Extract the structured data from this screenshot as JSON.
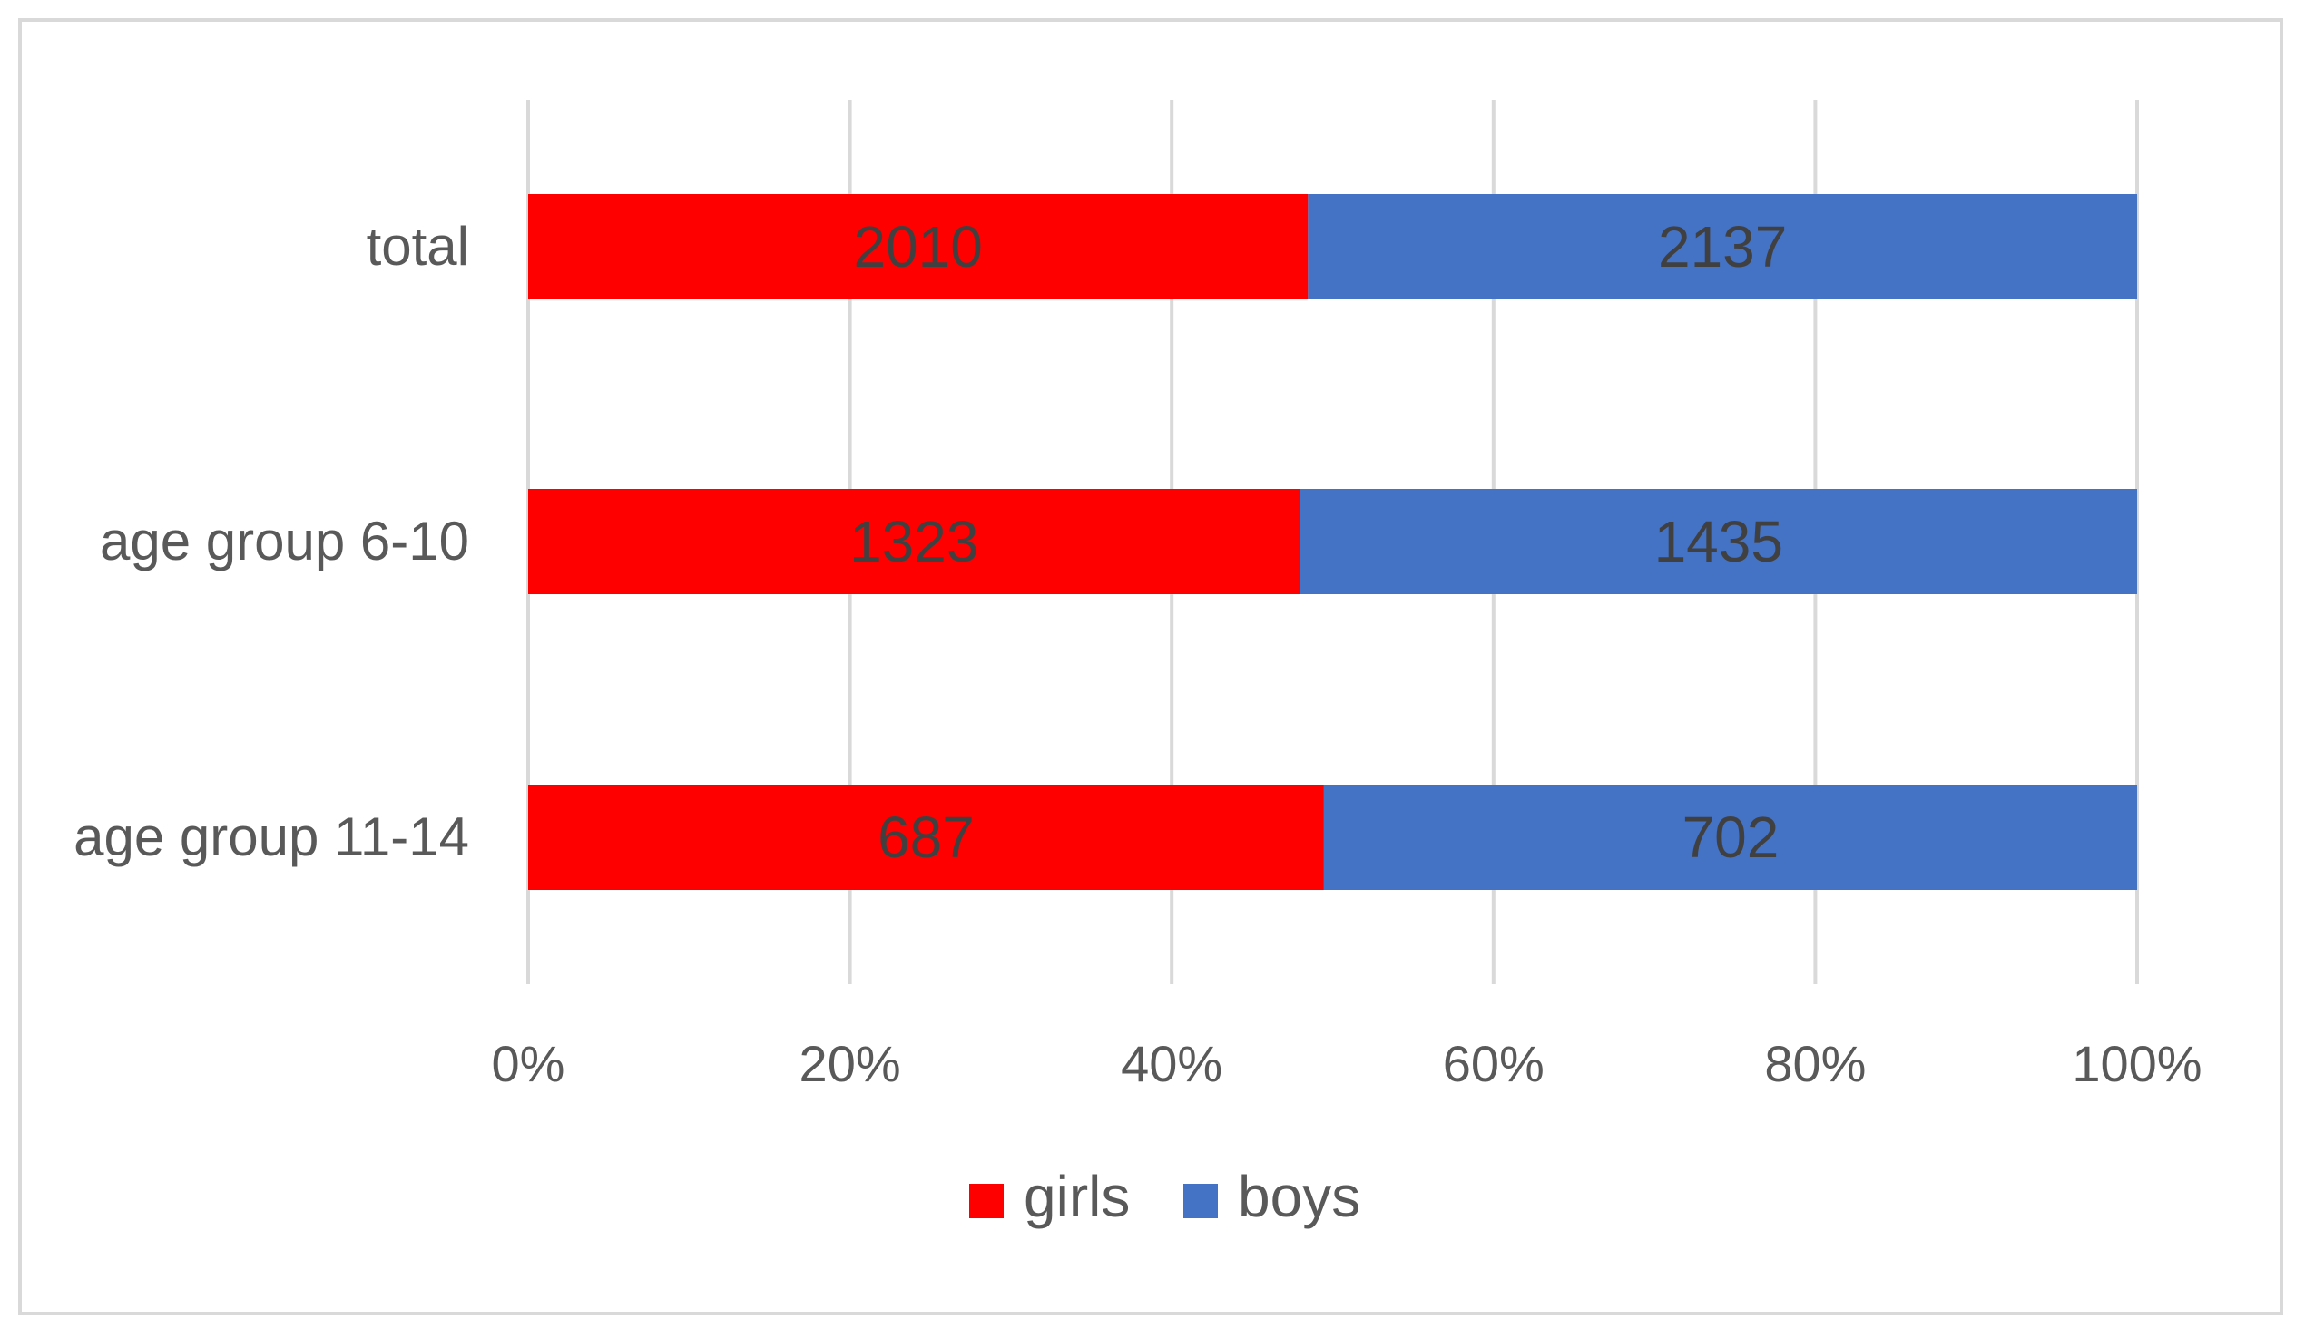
{
  "chart_data": {
    "type": "bar",
    "orientation": "horizontal",
    "stacking": "100% stacked",
    "categories": [
      "total",
      "age group 6-10",
      "age group 11-14"
    ],
    "series": [
      {
        "name": "girls",
        "values": [
          2010,
          1323,
          687
        ],
        "color": "#FF0000"
      },
      {
        "name": "boys",
        "values": [
          2137,
          1435,
          702
        ],
        "color": "#4472C4"
      }
    ],
    "x_ticks": [
      "0%",
      "20%",
      "40%",
      "60%",
      "80%",
      "100%"
    ],
    "xlim": [
      0,
      100
    ],
    "grid": true,
    "legend_position": "bottom",
    "data_labels": true,
    "title": "",
    "xlabel": "",
    "ylabel": ""
  }
}
